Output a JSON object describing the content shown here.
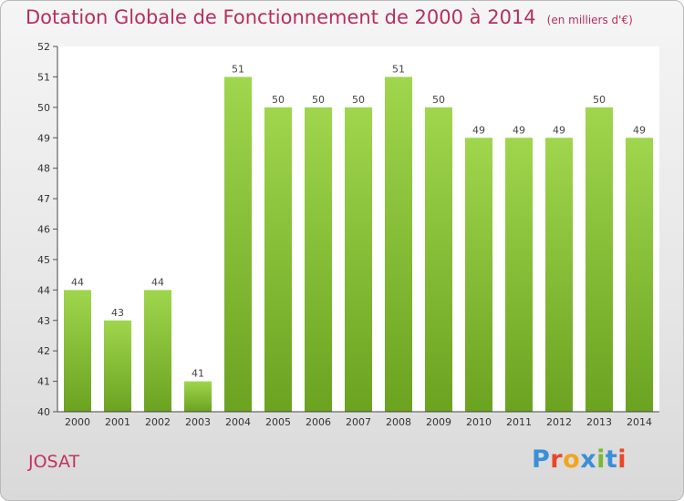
{
  "header": {
    "title": "Dotation Globale de Fonctionnement de 2000 à 2014",
    "unit": "(en milliers d'€)"
  },
  "footer": {
    "commune": "JOSAT",
    "logo_letters": [
      "P",
      "r",
      "o",
      "x",
      "i",
      "t",
      "i"
    ]
  },
  "colors": {
    "bar": "#8cc63f",
    "title": "#b5305e",
    "logo": [
      "#3a8fd6",
      "#e8462c",
      "#f2a51c",
      "#3a8fd6",
      "#7ab834",
      "#3a8fd6",
      "#e8462c"
    ]
  },
  "chart_data": {
    "type": "bar",
    "categories": [
      "2000",
      "2001",
      "2002",
      "2003",
      "2004",
      "2005",
      "2006",
      "2007",
      "2008",
      "2009",
      "2010",
      "2011",
      "2012",
      "2013",
      "2014"
    ],
    "values": [
      44,
      43,
      44,
      41,
      51,
      50,
      50,
      50,
      51,
      50,
      49,
      49,
      49,
      50,
      49
    ],
    "data_labels": [
      "44",
      "43",
      "44",
      "41",
      "51",
      "50",
      "50",
      "50",
      "51",
      "50",
      "49",
      "49",
      "49",
      "50",
      "49"
    ],
    "ylim": [
      40,
      52
    ],
    "yticks": [
      "40",
      "41",
      "42",
      "43",
      "44",
      "45",
      "46",
      "47",
      "48",
      "49",
      "50",
      "51",
      "52"
    ],
    "title": "Dotation Globale de Fonctionnement de 2000 à 2014",
    "xlabel": "",
    "ylabel": "",
    "grid": false,
    "legend": "none"
  }
}
